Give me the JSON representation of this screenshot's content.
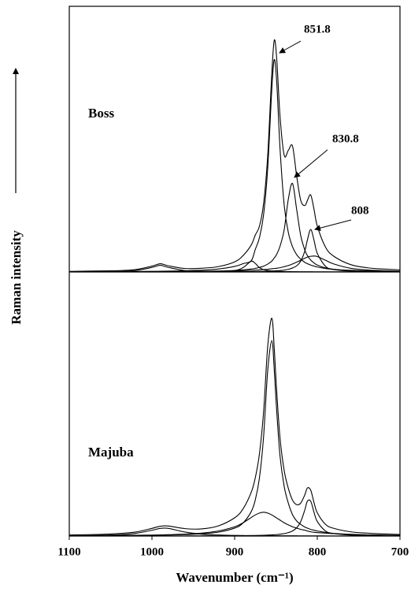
{
  "chart_data": [
    {
      "type": "line",
      "label": "Boss",
      "annotations": [
        "851.8",
        "830.8",
        "808"
      ],
      "xlim": [
        1100,
        700
      ],
      "ylim": [
        0,
        100
      ],
      "x": [
        1100,
        1060,
        1040,
        1020,
        1000,
        990,
        980,
        960,
        940,
        920,
        900,
        890,
        880,
        875,
        870,
        865,
        860,
        855,
        852,
        849,
        845,
        840,
        835,
        830,
        825,
        820,
        815,
        812,
        808,
        804,
        800,
        790,
        780,
        760,
        740,
        720,
        700
      ],
      "series": [
        {
          "color": "#000000",
          "values": [
            0.2,
            0.4,
            0.5,
            0.9,
            2.2,
            3.1,
            2.3,
            1.3,
            1.4,
            2.0,
            3.8,
            6.1,
            10.1,
            13.9,
            17.2,
            25.7,
            43.8,
            75,
            87.3,
            79.8,
            58.2,
            43.9,
            45.8,
            47.4,
            36.2,
            26.9,
            25,
            26.9,
            29,
            23.6,
            17.3,
            9.3,
            5.9,
            2.8,
            1.6,
            1.1,
            0.8
          ]
        },
        {
          "color": "#000000",
          "values": [
            0.08,
            0.12,
            0.15,
            0.18,
            0.23,
            0.27,
            0.31,
            0.44,
            0.65,
            1.1,
            2.1,
            3.1,
            4.2,
            8.5,
            12.9,
            21.5,
            39,
            69,
            80,
            71,
            46,
            25,
            14.8,
            9.5,
            6.5,
            4.8,
            3.6,
            3.1,
            2.6,
            2.2,
            1.86,
            1.3,
            0.95,
            0.6,
            0.4,
            0.3,
            0.22
          ]
        },
        {
          "color": "#000000",
          "values": [
            0.04,
            0.05,
            0.06,
            0.08,
            0.1,
            0.11,
            0.12,
            0.16,
            0.23,
            0.34,
            0.56,
            0.76,
            1.1,
            1.35,
            1.7,
            2.2,
            2.95,
            4.1,
            5.3,
            6.7,
            9.8,
            16,
            27.5,
            33.3,
            23.6,
            13.6,
            8.2,
            6.2,
            4.5,
            3.4,
            2.6,
            1.5,
            1.0,
            0.5,
            0.3,
            0.22,
            0.16
          ]
        },
        {
          "color": "#000000",
          "values": [
            0.02,
            0.02,
            0.03,
            0.03,
            0.03,
            0.04,
            0.04,
            0.05,
            0.06,
            0.07,
            0.09,
            0.1,
            0.15,
            0.18,
            0.2,
            0.24,
            0.28,
            0.35,
            0.4,
            0.45,
            0.55,
            0.7,
            1.0,
            1.5,
            2.3,
            4.1,
            8,
            12,
            16,
            12,
            7,
            2.1,
            0.9,
            0.33,
            0.17,
            0.1,
            0.07
          ]
        },
        {
          "color": "#000000",
          "values": [
            0.05,
            0.06,
            0.07,
            0.08,
            0.1,
            0.11,
            0.12,
            0.15,
            0.2,
            0.27,
            0.4,
            0.48,
            0.6,
            0.7,
            0.77,
            0.9,
            1.0,
            1.2,
            1.3,
            1.4,
            1.6,
            2,
            2.4,
            3,
            3.7,
            4.4,
            5.2,
            5.6,
            5.9,
            6,
            5.8,
            4.4,
            3,
            1.4,
            0.77,
            0.48,
            0.32
          ]
        },
        {
          "color": "#000000",
          "values": [
            0,
            0.01,
            0.01,
            0.02,
            0.02,
            0.03,
            0.03,
            0.04,
            0.07,
            0.15,
            0.55,
            1.6,
            4,
            3.2,
            1.6,
            0.9,
            0.55,
            0.37,
            0.3,
            0.25,
            0.2,
            0.16,
            0.13,
            0.1,
            0.08,
            0.07,
            0.06,
            0.05,
            0.05,
            0.04,
            0.04,
            0.03,
            0.03,
            0.02,
            0.02,
            0.01,
            0.01
          ]
        },
        {
          "color": "#000000",
          "values": [
            0.05,
            0.11,
            0.2,
            0.5,
            1.7,
            2.5,
            1.7,
            0.5,
            0.2,
            0.11,
            0.07,
            0.06,
            0.05,
            0.05,
            0.04,
            0.04,
            0.04,
            0.04,
            0.04,
            0.04,
            0.03,
            0.03,
            0.03,
            0.03,
            0.03,
            0.03,
            0.03,
            0.03,
            0.03,
            0.03,
            0.03,
            0.02,
            0.02,
            0.02,
            0.02,
            0.02,
            0.02
          ]
        }
      ]
    },
    {
      "type": "line",
      "label": "Majuba",
      "x_label": "Wavenumber (cm⁻¹)",
      "y_label": "Raman intensity",
      "xlim": [
        1100,
        700
      ],
      "xticks": [
        1100,
        1000,
        900,
        800,
        700
      ],
      "ylim": [
        0,
        100
      ],
      "x": [
        1100,
        1060,
        1040,
        1020,
        1000,
        990,
        980,
        960,
        940,
        920,
        900,
        890,
        880,
        875,
        870,
        865,
        860,
        855,
        852,
        849,
        845,
        840,
        835,
        830,
        825,
        820,
        815,
        812,
        808,
        804,
        800,
        790,
        780,
        760,
        740,
        720,
        700
      ],
      "series": [
        {
          "color": "#000000",
          "values": [
            0.4,
            0.65,
            0.96,
            1.5,
            2.9,
            3.7,
            3.8,
            2.8,
            2.7,
            3.8,
            6.9,
            10.2,
            16.5,
            22.1,
            31.1,
            46.9,
            71.8,
            82.5,
            70.6,
            54.3,
            36.8,
            24.7,
            18,
            13.6,
            11.9,
            12.5,
            15.7,
            18.2,
            17.4,
            12.7,
            8.8,
            4.4,
            2.9,
            1.6,
            1.1,
            0.8,
            0.6
          ]
        },
        {
          "color": "#000000",
          "values": [
            0.1,
            0.15,
            0.19,
            0.23,
            0.29,
            0.34,
            0.39,
            0.56,
            0.85,
            1.45,
            3,
            4.9,
            9.2,
            13.7,
            22,
            37.5,
            62.6,
            74,
            62.6,
            46.8,
            30,
            18.7,
            12.4,
            8.1,
            5.7,
            4.4,
            3.4,
            3,
            2.5,
            2.2,
            1.9,
            1.4,
            1.0,
            0.65,
            0.45,
            0.32,
            0.25
          ]
        },
        {
          "color": "#000000",
          "values": [
            0.13,
            0.18,
            0.23,
            0.28,
            0.37,
            0.43,
            0.5,
            0.72,
            1.1,
            1.9,
            3.5,
            5,
            7,
            8,
            8.7,
            9,
            8.7,
            8,
            7.4,
            6.8,
            6,
            5,
            4.2,
            3.5,
            3,
            2.5,
            2.2,
            1.9,
            1.6,
            1.4,
            1.3,
            1.1,
            0.9,
            0.6,
            0.43,
            0.33,
            0.25
          ]
        },
        {
          "color": "#000000",
          "values": [
            0.02,
            0.02,
            0.02,
            0.03,
            0.03,
            0.03,
            0.03,
            0.04,
            0.05,
            0.07,
            0.11,
            0.14,
            0.18,
            0.21,
            0.25,
            0.3,
            0.36,
            0.43,
            0.5,
            0.56,
            0.7,
            0.93,
            1.3,
            1.9,
            3.1,
            5.5,
            10,
            13.2,
            13.2,
            9,
            5.5,
            1.9,
            0.93,
            0.35,
            0.18,
            0.11,
            0.07
          ]
        },
        {
          "color": "#000000",
          "values": [
            0.14,
            0.3,
            0.52,
            1,
            2.2,
            2.9,
            2.9,
            1.5,
            0.7,
            0.38,
            0.24,
            0.2,
            0.16,
            0.15,
            0.14,
            0.13,
            0.12,
            0.11,
            0.1,
            0.1,
            0.1,
            0.1,
            0.1,
            0.08,
            0.08,
            0.07,
            0.07,
            0.06,
            0.06,
            0.05,
            0.05,
            0.04,
            0.04,
            0.03,
            0.03,
            0.02,
            0.02
          ]
        }
      ]
    }
  ]
}
